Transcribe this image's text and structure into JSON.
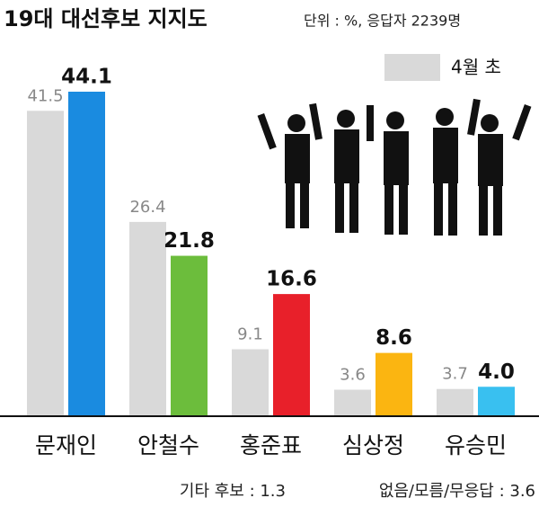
{
  "chart_data": {
    "type": "bar",
    "title": "19대 대선후보 지지도",
    "subtitle": "단위 : %, 응답자 2239명",
    "categories": [
      "문재인",
      "안철수",
      "홍준표",
      "심상정",
      "유승민"
    ],
    "series": [
      {
        "name": "4월 초",
        "color": "#d9d9d9",
        "values": [
          41.5,
          26.4,
          9.1,
          3.6,
          3.7
        ]
      },
      {
        "colors": [
          "#1a8be0",
          "#6cbd3c",
          "#e8202a",
          "#fbb511",
          "#39c0f0"
        ],
        "values": [
          44.1,
          21.8,
          16.6,
          8.6,
          4.0
        ],
        "value_labels": [
          "44.1",
          "21.8",
          "16.6",
          "8.6",
          "4.0"
        ]
      }
    ],
    "annotations": [
      "기타 후보 : 1.3",
      "없음/모름/무응답 : 3.6"
    ],
    "legend": "top-right"
  }
}
